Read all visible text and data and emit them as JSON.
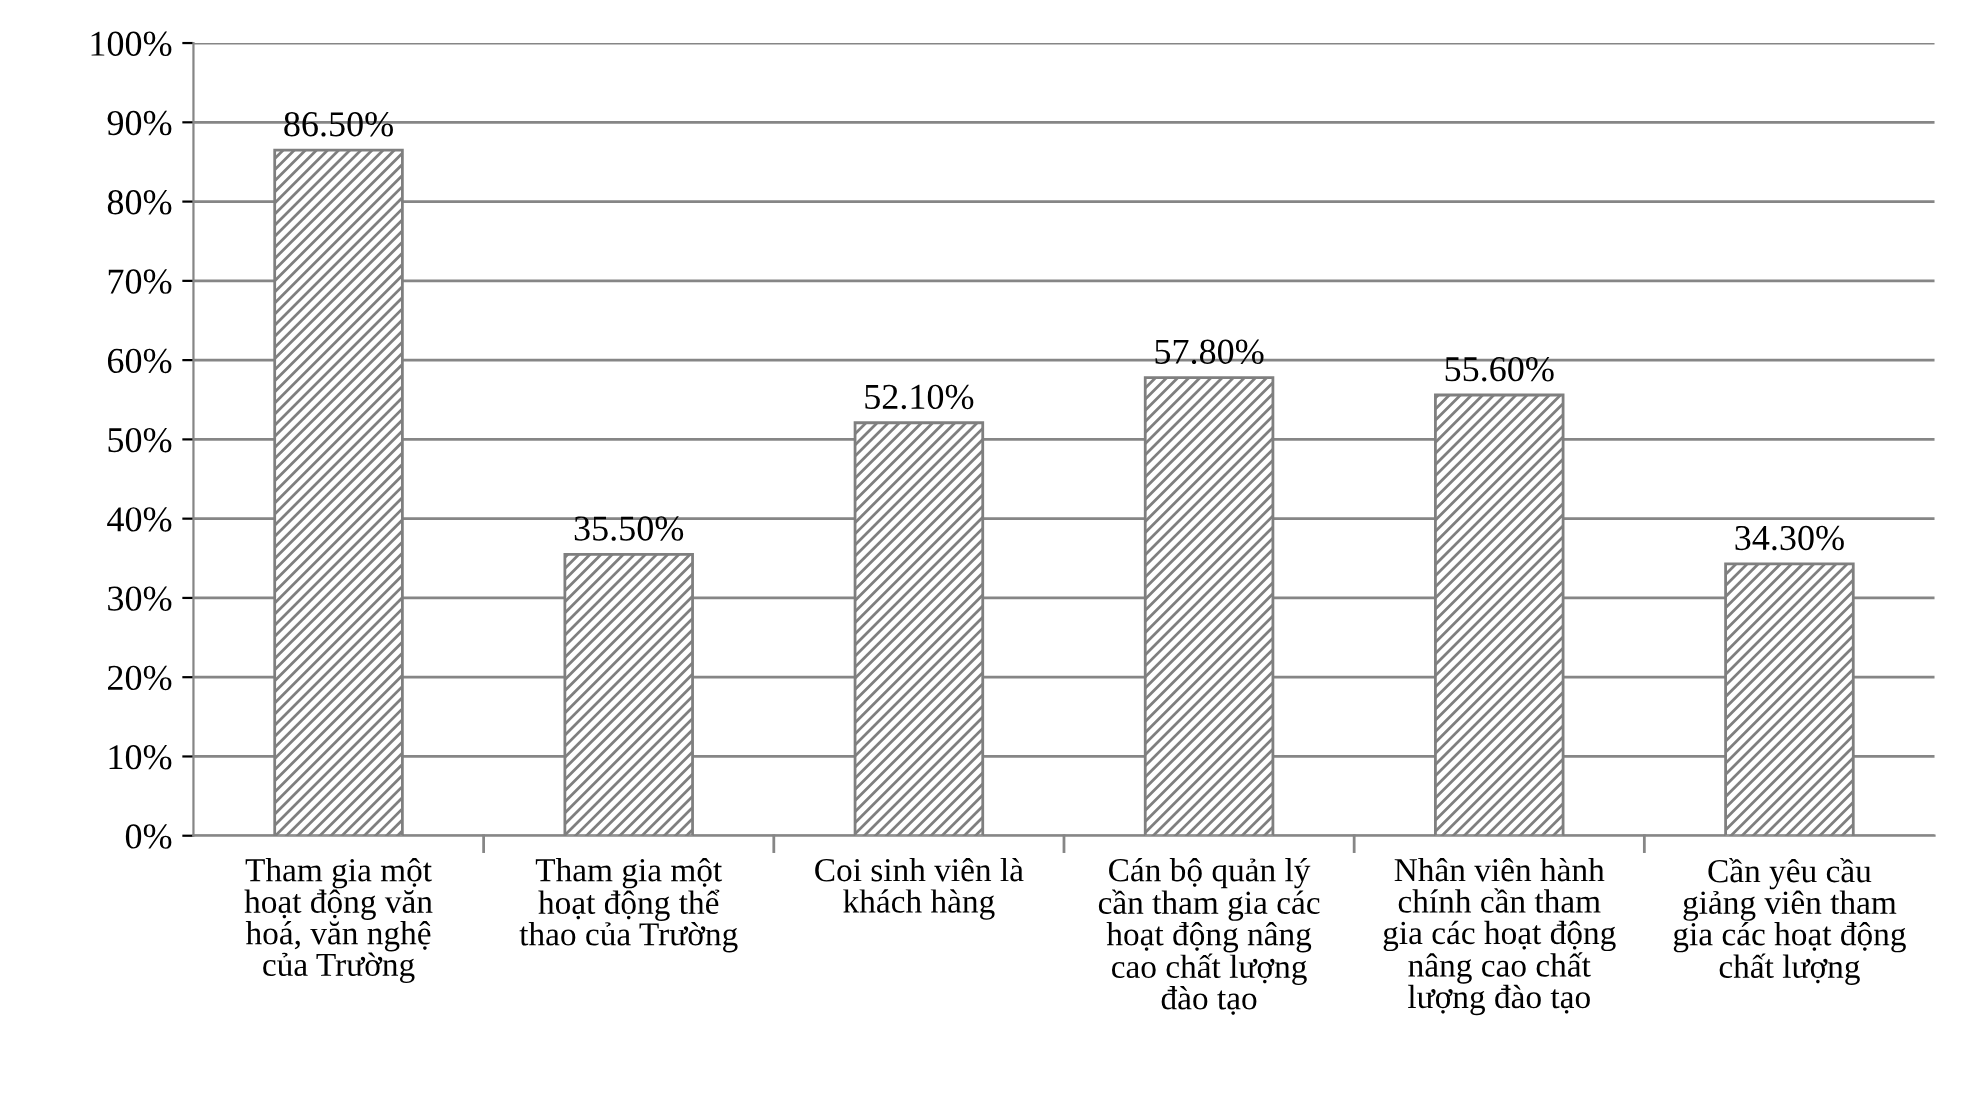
{
  "chart_data": {
    "type": "bar",
    "categories": [
      "Tham gia một\nhoạt động văn\nhoá, văn nghệ\ncủa Trường",
      "Tham gia một\nhoạt động thể\nthao của Trường",
      "Coi sinh viên là\nkhách hàng",
      "Cán bộ quản lý\ncần tham gia các\nhoạt động nâng\ncao chất lượng\nđào tạo",
      "Nhân viên hành\nchính cần tham\ngia các hoạt động\nnâng cao chất\nlượng đào tạo",
      "Cần yêu cầu\ngiảng viên tham\ngia các hoạt động\nchất lượng"
    ],
    "values": [
      86.5,
      35.5,
      52.1,
      57.8,
      55.6,
      34.3
    ],
    "value_labels": [
      "86.50%",
      "35.50%",
      "52.10%",
      "57.80%",
      "55.60%",
      "34.30%"
    ],
    "color": "#7f7f7f",
    "ylim": [
      0,
      100
    ],
    "yticks": [
      {
        "value": 0,
        "label": "0%"
      },
      {
        "value": 10,
        "label": "10%"
      },
      {
        "value": 20,
        "label": "20%"
      },
      {
        "value": 30,
        "label": "30%"
      },
      {
        "value": 40,
        "label": "40%"
      },
      {
        "value": 50,
        "label": "50%"
      },
      {
        "value": 60,
        "label": "60%"
      },
      {
        "value": 70,
        "label": "70%"
      },
      {
        "value": 80,
        "label": "80%"
      },
      {
        "value": 90,
        "label": "90%"
      },
      {
        "value": 100,
        "label": "100%"
      }
    ],
    "grid": "y"
  }
}
